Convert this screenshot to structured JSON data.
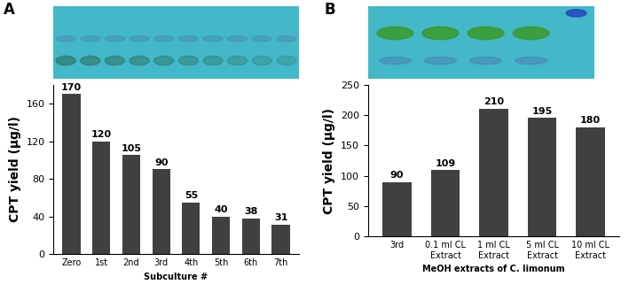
{
  "chart_data": [
    {
      "type": "bar",
      "annotations": [
        "A"
      ],
      "categories": [
        "Zero",
        "1st",
        "2nd",
        "3rd",
        "4th",
        "5th",
        "6th",
        "7th"
      ],
      "values": [
        170,
        120,
        105,
        90,
        55,
        40,
        38,
        31
      ],
      "color": "#404040",
      "x_label": "Subculture #",
      "y_label": "CPT yield (µg/l)",
      "ylim": [
        0,
        180
      ],
      "yticks": [
        0,
        40,
        80,
        120,
        160
      ],
      "data_labels": true,
      "grid": false
    },
    {
      "type": "bar",
      "annotations": [
        "B"
      ],
      "categories": [
        "3rd",
        "0.1 ml CL Extract",
        "1 ml CL Extract",
        "5 ml CL Extract",
        "10 ml CL Extract"
      ],
      "values": [
        90,
        109,
        210,
        195,
        180
      ],
      "color": "#404040",
      "x_label": "MeOH extracts of C. limonum",
      "y_label": "CPT yield (µg/l)",
      "ylim": [
        0,
        250
      ],
      "yticks": [
        0,
        50,
        100,
        150,
        200,
        250
      ],
      "data_labels": true,
      "grid": false
    }
  ]
}
